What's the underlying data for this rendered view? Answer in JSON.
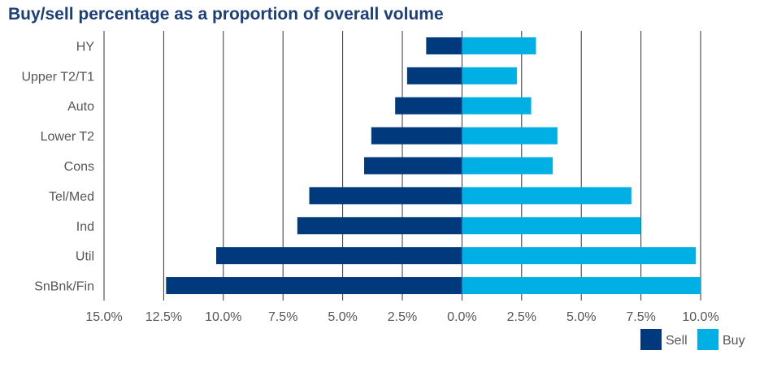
{
  "chart_data": {
    "type": "bar",
    "orientation": "horizontal-diverging",
    "title": "Buy/sell percentage as a proportion of overall volume",
    "categories": [
      "HY",
      "Upper T2/T1",
      "Auto",
      "Lower T2",
      "Cons",
      "Tel/Med",
      "Ind",
      "Util",
      "SnBnk/Fin"
    ],
    "series": [
      {
        "name": "Sell",
        "color": "#003a7d",
        "values": [
          -1.5,
          -2.3,
          -2.8,
          -3.8,
          -4.1,
          -6.4,
          -6.9,
          -10.3,
          -12.4
        ]
      },
      {
        "name": "Buy",
        "color": "#00b0e4",
        "values": [
          3.1,
          2.3,
          2.9,
          4.0,
          3.8,
          7.1,
          7.5,
          9.8,
          10.0
        ]
      }
    ],
    "xlim": [
      -15,
      10
    ],
    "x_ticks": [
      -15,
      -12.5,
      -10,
      -7.5,
      -5,
      -2.5,
      0,
      2.5,
      5,
      7.5,
      10
    ],
    "x_tick_labels": [
      "15.0%",
      "12.5%",
      "10.0%",
      "7.5%",
      "5.0%",
      "2.5%",
      "0.0%",
      "2.5%",
      "5.0%",
      "7.5%",
      "10.0%"
    ],
    "grid": "vertical",
    "legend": "bottom-right"
  }
}
